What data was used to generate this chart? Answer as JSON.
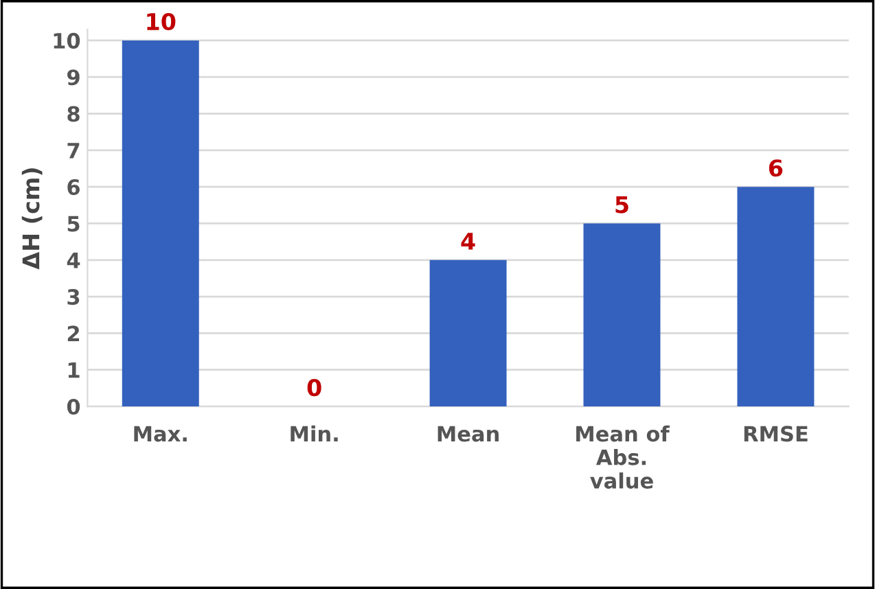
{
  "chart_data": {
    "type": "bar",
    "ylabel": "ΔH (cm)",
    "categories": [
      "Max.",
      "Min.",
      "Mean",
      "Mean of\nAbs.\nvalue",
      "RMSE"
    ],
    "values": [
      10,
      0,
      4,
      5,
      6
    ],
    "color": "#3461bd",
    "data_labels": true,
    "ylim": [
      0,
      10.3
    ],
    "yticks": [
      0,
      1,
      2,
      3,
      4,
      5,
      6,
      7,
      8,
      9,
      10
    ],
    "grid": "y"
  }
}
